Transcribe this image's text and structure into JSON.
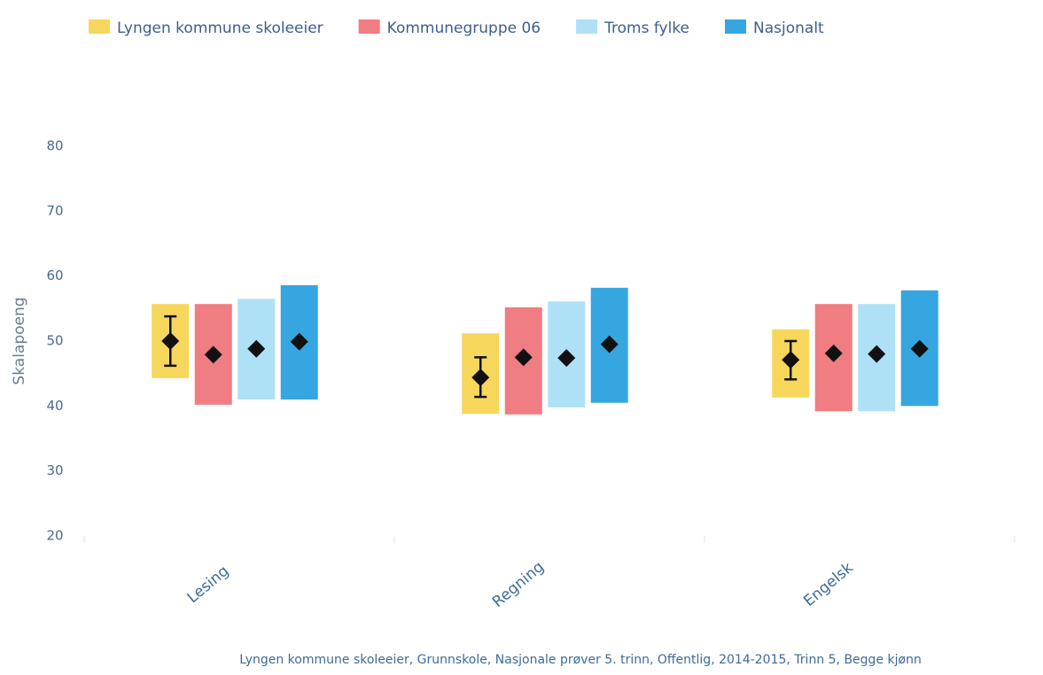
{
  "chart_data": {
    "type": "rangebar",
    "y_label": "Skalapoeng",
    "caption": "Lyngen kommune skoleeier, Grunnskole, Nasjonale prøver 5. trinn, Offentlig, 2014-2015, Trinn 5, Begge kjønn",
    "categories": [
      "Lesing",
      "Regning",
      "Engelsk"
    ],
    "ylim": [
      20,
      80
    ],
    "yticks": [
      20,
      30,
      40,
      50,
      60,
      70,
      80
    ],
    "grid": false,
    "legend": "top",
    "series": [
      {
        "name": "Lyngen kommune skoleeier",
        "color": "#f7d65c",
        "low": [
          44.3,
          38.8,
          41.3
        ],
        "high": [
          55.7,
          51.2,
          51.8
        ],
        "mean": [
          50.0,
          44.4,
          47.1
        ],
        "error_low": [
          46.2,
          41.4,
          44.1
        ],
        "error_high": [
          53.8,
          47.5,
          50.0
        ]
      },
      {
        "name": "Kommunegruppe 06",
        "color": "#ef7d82",
        "low": [
          40.2,
          38.7,
          39.2
        ],
        "high": [
          55.7,
          55.2,
          55.7
        ],
        "mean": [
          47.9,
          47.5,
          48.1
        ]
      },
      {
        "name": "Troms fylke",
        "color": "#aee1f6",
        "low": [
          41.0,
          39.8,
          39.2
        ],
        "high": [
          56.5,
          56.1,
          55.7
        ],
        "mean": [
          48.8,
          47.4,
          48.0
        ]
      },
      {
        "name": "Nasjonalt",
        "color": "#36a6e0",
        "low": [
          41.0,
          40.5,
          40.0
        ],
        "high": [
          58.6,
          58.2,
          57.8
        ],
        "mean": [
          49.9,
          49.5,
          48.8
        ]
      }
    ]
  }
}
